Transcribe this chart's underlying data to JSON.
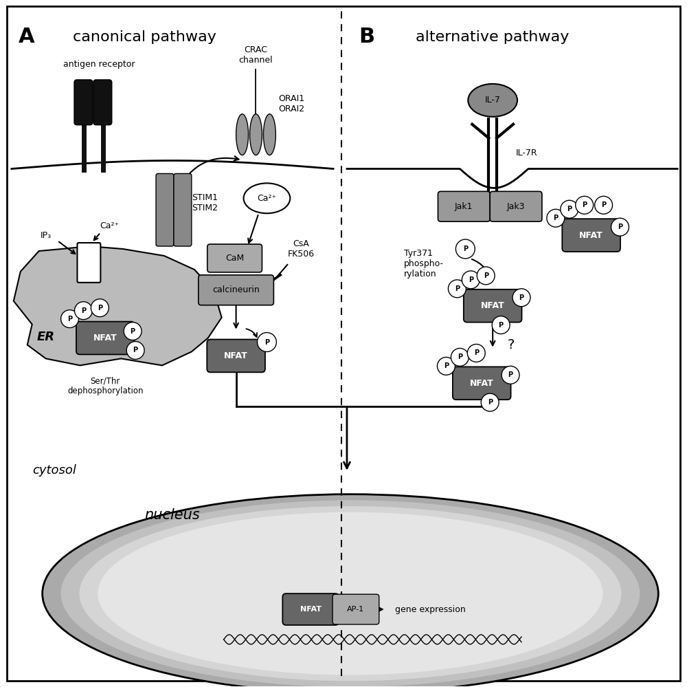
{
  "bg_color": "#ffffff",
  "black": "#000000",
  "white": "#ffffff",
  "gray_dark": "#555555",
  "gray_medium": "#888888",
  "gray_light": "#aaaaaa",
  "gray_er": "#bbbbbb",
  "nfat_dark": "#666666",
  "nfat_medium": "#999999",
  "jak_color": "#999999",
  "panel_A_label": "A",
  "panel_B_label": "B",
  "panel_A_title": "canonical pathway",
  "panel_B_title": "alternative pathway",
  "cytosol_label": "cytosol",
  "nucleus_label": "nucleus",
  "gene_expr_label": "gene expression"
}
